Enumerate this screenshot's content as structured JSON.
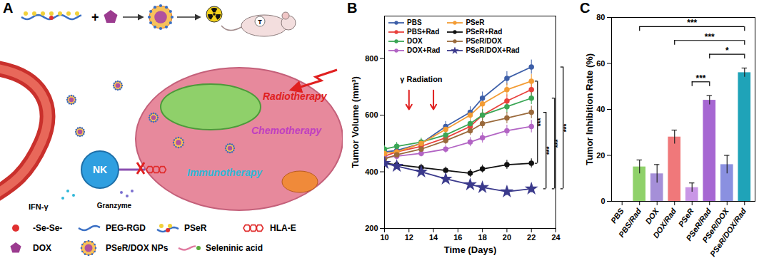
{
  "diagram": {
    "panel": "A",
    "mouse_label": "T",
    "therapies": [
      "Radiotherapy",
      "Chemotherapy",
      "Immunotherapy"
    ],
    "cell_labels": {
      "nk": "NK",
      "cytokine": "IFN-γ",
      "granule": "Granzyme"
    },
    "key": [
      "-Se-Se-",
      "PEG-RGD",
      "PSeR",
      "HLA-E",
      "DOX",
      "PSeR/DOX NPs",
      "Seleninic acid"
    ]
  },
  "chart_data": [
    {
      "panel": "B",
      "type": "line",
      "x_label": "Time (Days)",
      "y_label": "Tumor Volume (mm³)",
      "xlim": [
        10,
        24
      ],
      "xticks": [
        10,
        12,
        14,
        16,
        18,
        20,
        22,
        24
      ],
      "ylim": [
        200,
        950
      ],
      "yticks": [
        200,
        400,
        600,
        800
      ],
      "x": [
        10,
        11,
        13,
        15,
        17,
        18,
        20,
        22
      ],
      "legend": "top-left",
      "annotation": "γ Radiation",
      "radiation_days": [
        12,
        14
      ],
      "series": [
        {
          "name": "PBS",
          "color": "#3d5fa8",
          "marker": "circle",
          "values": [
            470,
            475,
            500,
            560,
            610,
            660,
            730,
            770
          ],
          "errors": [
            12,
            14,
            15,
            18,
            20,
            22,
            24,
            25
          ]
        },
        {
          "name": "PBS+Rad",
          "color": "#e8413c",
          "marker": "circle",
          "values": [
            455,
            470,
            490,
            520,
            560,
            600,
            650,
            690
          ],
          "errors": [
            12,
            12,
            14,
            16,
            18,
            20,
            22,
            24
          ]
        },
        {
          "name": "DOX",
          "color": "#3aa655",
          "marker": "circle",
          "values": [
            480,
            490,
            505,
            530,
            570,
            600,
            630,
            660
          ],
          "errors": [
            12,
            14,
            14,
            16,
            18,
            20,
            22,
            22
          ]
        },
        {
          "name": "DOX+Rad",
          "color": "#b264c4",
          "marker": "circle",
          "values": [
            450,
            455,
            465,
            480,
            505,
            520,
            545,
            560
          ],
          "errors": [
            10,
            12,
            12,
            14,
            16,
            18,
            20,
            22
          ]
        },
        {
          "name": "PSeR",
          "color": "#f39c34",
          "marker": "circle",
          "values": [
            465,
            470,
            500,
            550,
            600,
            640,
            690,
            720
          ],
          "errors": [
            12,
            12,
            14,
            16,
            18,
            20,
            22,
            24
          ]
        },
        {
          "name": "PSeR+Rad",
          "color": "#111111",
          "marker": "circle",
          "values": [
            430,
            425,
            415,
            405,
            395,
            410,
            425,
            430
          ],
          "errors": [
            10,
            10,
            12,
            12,
            14,
            14,
            16,
            16
          ]
        },
        {
          "name": "PSeR/DOX",
          "color": "#9a6a3c",
          "marker": "circle",
          "values": [
            445,
            460,
            480,
            510,
            545,
            570,
            590,
            610
          ],
          "errors": [
            10,
            12,
            12,
            14,
            16,
            18,
            20,
            22
          ]
        },
        {
          "name": "PSeR/DOX+Rad",
          "color": "#3b3a8c",
          "marker": "star",
          "values": [
            430,
            420,
            400,
            375,
            355,
            345,
            330,
            340
          ],
          "errors": [
            10,
            10,
            10,
            12,
            12,
            12,
            14,
            14
          ]
        }
      ],
      "significance": [
        {
          "pair": [
            "PSeR",
            "PSeR+Rad"
          ],
          "label": "***"
        },
        {
          "pair": [
            "PSeR/DOX",
            "PSeR/DOX+Rad"
          ],
          "label": "***"
        },
        {
          "pair": [
            "DOX",
            "PSeR/DOX+Rad"
          ],
          "label": "***"
        },
        {
          "pair": [
            "PBS",
            "PSeR/DOX+Rad"
          ],
          "label": "***"
        }
      ]
    },
    {
      "panel": "C",
      "type": "bar",
      "y_label": "Tumor Inhibition Rate (%)",
      "categories": [
        "PBS",
        "PBS/Rad",
        "DOX",
        "DOX/Rad",
        "PSeR",
        "PSeR/Rad",
        "PSeR/DOX",
        "PSeR/DOX/Rad"
      ],
      "values": [
        0,
        15,
        12,
        28,
        6,
        44,
        16,
        56
      ],
      "errors": [
        0,
        3,
        4,
        3,
        2,
        2,
        4,
        2
      ],
      "colors": [
        "#4a6fb5",
        "#8fd16a",
        "#a58fd8",
        "#f0787a",
        "#c996e6",
        "#a667d2",
        "#8a90e0",
        "#1fa3b8"
      ],
      "ylim": [
        0,
        80
      ],
      "yticks": [
        0,
        20,
        40,
        60,
        80
      ],
      "significance": [
        {
          "pair": [
            "PBS/Rad",
            "PSeR/DOX/Rad"
          ],
          "label": "***"
        },
        {
          "pair": [
            "DOX/Rad",
            "PSeR/DOX/Rad"
          ],
          "label": "***"
        },
        {
          "pair": [
            "PSeR",
            "PSeR/Rad"
          ],
          "label": "***"
        },
        {
          "pair": [
            "PSeR/Rad",
            "PSeR/DOX/Rad"
          ],
          "label": "*"
        }
      ]
    }
  ]
}
